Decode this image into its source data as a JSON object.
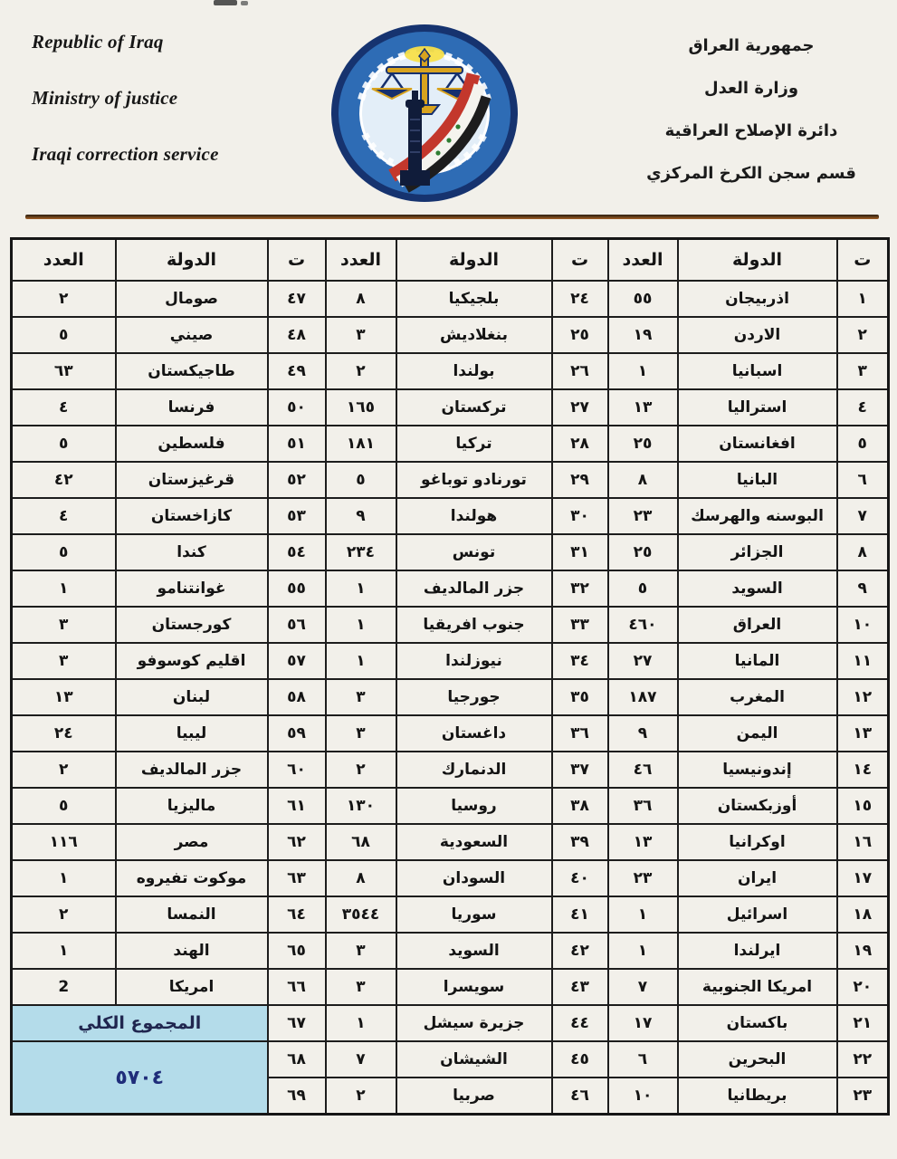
{
  "header": {
    "english_lines": [
      "Republic of Iraq",
      "Ministry of justice",
      "Iraqi correction service"
    ],
    "arabic_lines": [
      "جمهورية العراق",
      "وزارة العدل",
      "دائرة الإصلاح العراقية",
      "قسم سجن الكرخ المركزي"
    ],
    "logo_name": "iraqi-ministry-of-justice-seal"
  },
  "table": {
    "column_headers": {
      "index": "ت",
      "country": "الدولة",
      "count": "العدد"
    },
    "groups": 3,
    "rows_per_group": 23,
    "entries": [
      {
        "n": "١",
        "country": "اذربيجان",
        "count": "٥٥"
      },
      {
        "n": "٢",
        "country": "الاردن",
        "count": "١٩"
      },
      {
        "n": "٣",
        "country": "اسبانيا",
        "count": "١"
      },
      {
        "n": "٤",
        "country": "استراليا",
        "count": "١٣"
      },
      {
        "n": "٥",
        "country": "افغانستان",
        "count": "٢٥"
      },
      {
        "n": "٦",
        "country": "البانيا",
        "count": "٨"
      },
      {
        "n": "٧",
        "country": "البوسنه والهرسك",
        "count": "٢٣"
      },
      {
        "n": "٨",
        "country": "الجزائر",
        "count": "٢٥"
      },
      {
        "n": "٩",
        "country": "السويد",
        "count": "٥"
      },
      {
        "n": "١٠",
        "country": "العراق",
        "count": "٤٦٠"
      },
      {
        "n": "١١",
        "country": "المانيا",
        "count": "٢٧"
      },
      {
        "n": "١٢",
        "country": "المغرب",
        "count": "١٨٧"
      },
      {
        "n": "١٣",
        "country": "اليمن",
        "count": "٩"
      },
      {
        "n": "١٤",
        "country": "إندونيسيا",
        "count": "٤٦"
      },
      {
        "n": "١٥",
        "country": "أوزبكستان",
        "count": "٣٦"
      },
      {
        "n": "١٦",
        "country": "اوكرانيا",
        "count": "١٣"
      },
      {
        "n": "١٧",
        "country": "ايران",
        "count": "٢٣"
      },
      {
        "n": "١٨",
        "country": "اسرائيل",
        "count": "١"
      },
      {
        "n": "١٩",
        "country": "ايرلندا",
        "count": "١"
      },
      {
        "n": "٢٠",
        "country": "امريكا الجنوبية",
        "count": "٧"
      },
      {
        "n": "٢١",
        "country": "باكستان",
        "count": "١٧"
      },
      {
        "n": "٢٢",
        "country": "البحرين",
        "count": "٦"
      },
      {
        "n": "٢٣",
        "country": "بريطانيا",
        "count": "١٠"
      },
      {
        "n": "٢٤",
        "country": "بلجيكيا",
        "count": "٨"
      },
      {
        "n": "٢٥",
        "country": "بنغلاديش",
        "count": "٣"
      },
      {
        "n": "٢٦",
        "country": "بولندا",
        "count": "٢"
      },
      {
        "n": "٢٧",
        "country": "تركستان",
        "count": "١٦٥"
      },
      {
        "n": "٢٨",
        "country": "تركيا",
        "count": "١٨١"
      },
      {
        "n": "٢٩",
        "country": "تورنادو توباغو",
        "count": "٥"
      },
      {
        "n": "٣٠",
        "country": "هولندا",
        "count": "٩"
      },
      {
        "n": "٣١",
        "country": "تونس",
        "count": "٢٣٤"
      },
      {
        "n": "٣٢",
        "country": "جزر المالديف",
        "count": "١"
      },
      {
        "n": "٣٣",
        "country": "جنوب افريقيا",
        "count": "١"
      },
      {
        "n": "٣٤",
        "country": "نيوزلندا",
        "count": "١"
      },
      {
        "n": "٣٥",
        "country": "جورجيا",
        "count": "٣"
      },
      {
        "n": "٣٦",
        "country": "داغستان",
        "count": "٣"
      },
      {
        "n": "٣٧",
        "country": "الدنمارك",
        "count": "٢"
      },
      {
        "n": "٣٨",
        "country": "روسيا",
        "count": "١٣٠"
      },
      {
        "n": "٣٩",
        "country": "السعودية",
        "count": "٦٨"
      },
      {
        "n": "٤٠",
        "country": "السودان",
        "count": "٨"
      },
      {
        "n": "٤١",
        "country": "سوريا",
        "count": "٣٥٤٤"
      },
      {
        "n": "٤٢",
        "country": "السويد",
        "count": "٣"
      },
      {
        "n": "٤٣",
        "country": "سويسرا",
        "count": "٣"
      },
      {
        "n": "٤٤",
        "country": "جزيرة سيشل",
        "count": "١"
      },
      {
        "n": "٤٥",
        "country": "الشيشان",
        "count": "٧"
      },
      {
        "n": "٤٦",
        "country": "صربيا",
        "count": "٢"
      },
      {
        "n": "٤٧",
        "country": "صومال",
        "count": "٢"
      },
      {
        "n": "٤٨",
        "country": "صيني",
        "count": "٥"
      },
      {
        "n": "٤٩",
        "country": "طاجيكستان",
        "count": "٦٣"
      },
      {
        "n": "٥٠",
        "country": "فرنسا",
        "count": "٤"
      },
      {
        "n": "٥١",
        "country": "فلسطين",
        "count": "٥"
      },
      {
        "n": "٥٢",
        "country": "قرغيزستان",
        "count": "٤٢"
      },
      {
        "n": "٥٣",
        "country": "كازاخستان",
        "count": "٤"
      },
      {
        "n": "٥٤",
        "country": "كندا",
        "count": "٥"
      },
      {
        "n": "٥٥",
        "country": "غوانتنامو",
        "count": "١"
      },
      {
        "n": "٥٦",
        "country": "كورجستان",
        "count": "٣"
      },
      {
        "n": "٥٧",
        "country": "اقليم كوسوفو",
        "count": "٣"
      },
      {
        "n": "٥٨",
        "country": "لبنان",
        "count": "١٣"
      },
      {
        "n": "٥٩",
        "country": "ليبيا",
        "count": "٢٤"
      },
      {
        "n": "٦٠",
        "country": "جزر المالديف",
        "count": "٢"
      },
      {
        "n": "٦١",
        "country": "ماليزيا",
        "count": "٥"
      },
      {
        "n": "٦٢",
        "country": "مصر",
        "count": "١١٦"
      },
      {
        "n": "٦٣",
        "country": "موكوت تفيروه",
        "count": "١"
      },
      {
        "n": "٦٤",
        "country": "النمسا",
        "count": "٢"
      },
      {
        "n": "٦٥",
        "country": "الهند",
        "count": "١"
      },
      {
        "n": "٦٦",
        "country": "امريكا",
        "count": "2"
      },
      {
        "n": "٦٧",
        "country": null,
        "count": null
      },
      {
        "n": "٦٨",
        "country": null,
        "count": null
      },
      {
        "n": "٦٩",
        "country": null,
        "count": null
      }
    ],
    "total_label": "المجموع الكلي",
    "total_value": "٥٧٠٤"
  },
  "colors": {
    "summary_bg": "#b4dcea",
    "total_text": "#1f2d7a",
    "divider_brown": "#5c3a18",
    "table_border": "#1d1d1d",
    "logo_outer_blue": "#16336f",
    "logo_band_blue": "#2e6cb5",
    "flag_red": "#c3372c",
    "flag_black": "#1d1d1d",
    "scales_gold": "#d8a31f"
  }
}
